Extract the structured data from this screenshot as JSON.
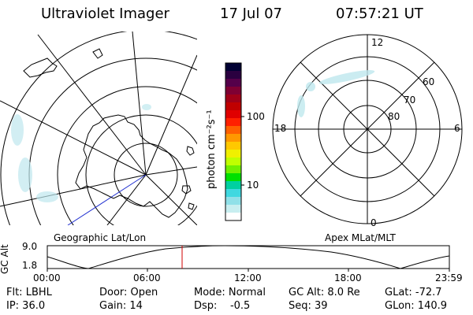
{
  "header": {
    "instrument": "Ultraviolet Imager",
    "date": "17 Jul 07",
    "time": "07:57:21 UT"
  },
  "colorbar": {
    "unit_label": "photon cm⁻²s⁻¹",
    "ticks": [
      "100",
      "10"
    ],
    "colors": [
      "#000033",
      "#2a0040",
      "#55004a",
      "#7f0033",
      "#a00018",
      "#c00000",
      "#e00000",
      "#ff2000",
      "#ff6000",
      "#ff9800",
      "#ffc800",
      "#f0f000",
      "#c0ff00",
      "#70f000",
      "#00e000",
      "#00d0a0",
      "#40d8e0",
      "#90e0e8",
      "#c8eef0",
      "#ffffff"
    ]
  },
  "left_panel": {
    "caption": "Geographic Lat/Lon"
  },
  "right_panel": {
    "caption": "Apex MLat/MLT",
    "mlt_labels": {
      "top": "12",
      "right": "6",
      "bottom": "0",
      "left": "18"
    },
    "lat_labels": [
      "60",
      "70",
      "80"
    ]
  },
  "altitude_plot": {
    "ylabel": "GC Alt",
    "yticks": [
      "9.0",
      "1.8"
    ],
    "xticks": [
      "00:00",
      "06:00",
      "12:00",
      "18:00",
      "23:59"
    ],
    "current_time_color": "#d00000"
  },
  "status": {
    "flt": "Flt: LBHL",
    "ip": "IP: 36.0",
    "door": "Door: Open",
    "gain": "Gain: 14",
    "mode": "Mode: Normal",
    "dsp": "Dsp:    -0.5",
    "gcalt": "GC Alt: 8.0 Re",
    "seq": "Seq: 39",
    "glat": "GLat: -72.7",
    "glon": "GLon: 140.9"
  }
}
